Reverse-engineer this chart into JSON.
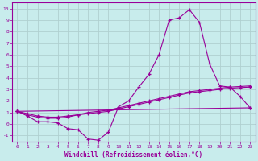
{
  "xlabel": "Windchill (Refroidissement éolien,°C)",
  "bg_color": "#c8ecec",
  "line_color": "#990099",
  "grid_color": "#b0d0d0",
  "xlim": [
    -0.5,
    23.5
  ],
  "ylim": [
    -1.5,
    10.5
  ],
  "xticks": [
    0,
    1,
    2,
    3,
    4,
    5,
    6,
    7,
    8,
    9,
    10,
    11,
    12,
    13,
    14,
    15,
    16,
    17,
    18,
    19,
    20,
    21,
    22,
    23
  ],
  "yticks": [
    -1,
    0,
    1,
    2,
    3,
    4,
    5,
    6,
    7,
    8,
    9,
    10
  ],
  "series1_x": [
    0,
    1,
    2,
    3,
    4,
    5,
    6,
    7,
    8,
    9,
    10,
    11,
    12,
    13,
    14,
    15,
    16,
    17,
    18,
    19,
    20,
    21,
    22,
    23
  ],
  "series1_y": [
    1.1,
    0.7,
    0.2,
    0.2,
    0.1,
    -0.4,
    -0.5,
    -1.3,
    -1.4,
    -0.7,
    1.5,
    2.0,
    3.2,
    4.3,
    6.0,
    9.0,
    9.2,
    9.9,
    8.8,
    5.2,
    3.3,
    3.2,
    2.4,
    1.4
  ],
  "series2_x": [
    0,
    1,
    2,
    3,
    4,
    5,
    6,
    7,
    8,
    9,
    10,
    11,
    12,
    13,
    14,
    15,
    16,
    17,
    18,
    19,
    20,
    21,
    22,
    23
  ],
  "series2_y": [
    1.1,
    0.8,
    0.6,
    0.5,
    0.5,
    0.6,
    0.8,
    0.9,
    1.0,
    1.1,
    1.3,
    1.5,
    1.7,
    1.9,
    2.1,
    2.3,
    2.5,
    2.7,
    2.8,
    2.9,
    3.0,
    3.1,
    3.15,
    3.2
  ],
  "series3_x": [
    0,
    1,
    2,
    3,
    4,
    5,
    6,
    7,
    8,
    9,
    10,
    11,
    12,
    13,
    14,
    15,
    16,
    17,
    18,
    19,
    20,
    21,
    22,
    23
  ],
  "series3_y": [
    1.1,
    0.9,
    0.7,
    0.6,
    0.6,
    0.7,
    0.8,
    1.0,
    1.1,
    1.2,
    1.4,
    1.6,
    1.8,
    2.0,
    2.2,
    2.4,
    2.6,
    2.8,
    2.9,
    3.0,
    3.1,
    3.2,
    3.25,
    3.3
  ],
  "series4_x": [
    0,
    23
  ],
  "series4_y": [
    1.1,
    1.4
  ]
}
